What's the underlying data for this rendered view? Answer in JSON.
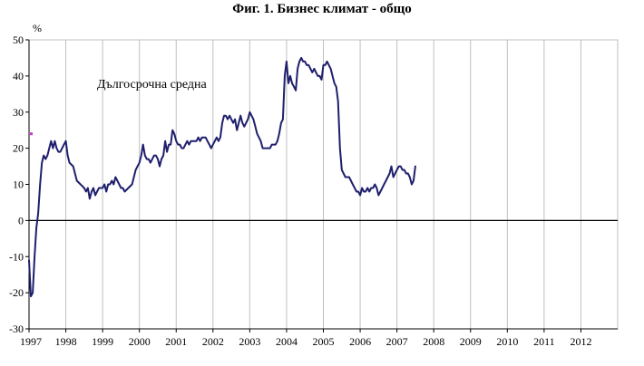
{
  "chart_data": {
    "type": "line",
    "title": "Фиг. 1. Бизнес климат - общо",
    "ylabel": "%",
    "xlabel": "",
    "ylim": [
      -30,
      50
    ],
    "yticks": [
      -30,
      -20,
      -10,
      0,
      10,
      20,
      30,
      40,
      50
    ],
    "x_tick_labels": [
      "1997",
      "1998",
      "1999",
      "2000",
      "2001",
      "2002",
      "2003",
      "2004",
      "2005",
      "2006",
      "2007",
      "2008",
      "2009",
      "2010",
      "2011",
      "2012"
    ],
    "grid": "vertical",
    "annotation": "Дългосрочна средна",
    "colors": {
      "series": "#1f1f6e",
      "zero_line": "#000000",
      "marker": "#cc33cc",
      "grid": "#bfbfbf"
    },
    "long_term_average": {
      "x": 1997.0,
      "y": 24
    },
    "series": [
      {
        "points": [
          [
            1997.0,
            -11
          ],
          [
            1997.05,
            -21
          ],
          [
            1997.1,
            -20
          ],
          [
            1997.15,
            -10
          ],
          [
            1997.2,
            -2
          ],
          [
            1997.25,
            2
          ],
          [
            1997.3,
            10
          ],
          [
            1997.35,
            16
          ],
          [
            1997.4,
            18
          ],
          [
            1997.45,
            17
          ],
          [
            1997.5,
            18
          ],
          [
            1997.55,
            20
          ],
          [
            1997.6,
            22
          ],
          [
            1997.65,
            20
          ],
          [
            1997.7,
            22
          ],
          [
            1997.75,
            20
          ],
          [
            1997.8,
            19
          ],
          [
            1997.85,
            19
          ],
          [
            1997.9,
            20
          ],
          [
            1997.95,
            21
          ],
          [
            1998.0,
            22
          ],
          [
            1998.05,
            18
          ],
          [
            1998.1,
            16
          ],
          [
            1998.2,
            15
          ],
          [
            1998.3,
            11
          ],
          [
            1998.4,
            10
          ],
          [
            1998.5,
            9
          ],
          [
            1998.55,
            8
          ],
          [
            1998.6,
            9
          ],
          [
            1998.65,
            6
          ],
          [
            1998.7,
            8
          ],
          [
            1998.75,
            9
          ],
          [
            1998.8,
            7
          ],
          [
            1998.85,
            8
          ],
          [
            1998.9,
            9
          ],
          [
            1999.0,
            9
          ],
          [
            1999.05,
            10
          ],
          [
            1999.1,
            8
          ],
          [
            1999.15,
            10
          ],
          [
            1999.2,
            10
          ],
          [
            1999.25,
            11
          ],
          [
            1999.3,
            10
          ],
          [
            1999.35,
            12
          ],
          [
            1999.4,
            11
          ],
          [
            1999.45,
            10
          ],
          [
            1999.5,
            9
          ],
          [
            1999.55,
            9
          ],
          [
            1999.6,
            8
          ],
          [
            1999.7,
            9
          ],
          [
            1999.8,
            10
          ],
          [
            1999.9,
            14
          ],
          [
            2000.0,
            16
          ],
          [
            2000.05,
            18
          ],
          [
            2000.1,
            21
          ],
          [
            2000.15,
            18
          ],
          [
            2000.2,
            17
          ],
          [
            2000.25,
            17
          ],
          [
            2000.3,
            16
          ],
          [
            2000.35,
            17
          ],
          [
            2000.4,
            18
          ],
          [
            2000.45,
            18
          ],
          [
            2000.5,
            17
          ],
          [
            2000.55,
            15
          ],
          [
            2000.6,
            17
          ],
          [
            2000.65,
            18
          ],
          [
            2000.7,
            22
          ],
          [
            2000.75,
            19
          ],
          [
            2000.8,
            21
          ],
          [
            2000.85,
            21
          ],
          [
            2000.9,
            25
          ],
          [
            2000.95,
            24
          ],
          [
            2001.0,
            22
          ],
          [
            2001.05,
            21
          ],
          [
            2001.1,
            21
          ],
          [
            2001.15,
            20
          ],
          [
            2001.2,
            20
          ],
          [
            2001.25,
            21
          ],
          [
            2001.3,
            22
          ],
          [
            2001.35,
            21
          ],
          [
            2001.4,
            22
          ],
          [
            2001.45,
            22
          ],
          [
            2001.5,
            22
          ],
          [
            2001.55,
            22
          ],
          [
            2001.6,
            23
          ],
          [
            2001.65,
            22
          ],
          [
            2001.7,
            23
          ],
          [
            2001.75,
            23
          ],
          [
            2001.8,
            23
          ],
          [
            2001.85,
            22
          ],
          [
            2001.9,
            21
          ],
          [
            2001.95,
            20
          ],
          [
            2002.0,
            21
          ],
          [
            2002.05,
            22
          ],
          [
            2002.1,
            23
          ],
          [
            2002.15,
            22
          ],
          [
            2002.2,
            23
          ],
          [
            2002.25,
            27
          ],
          [
            2002.3,
            29
          ],
          [
            2002.35,
            29
          ],
          [
            2002.4,
            28
          ],
          [
            2002.45,
            29
          ],
          [
            2002.5,
            28
          ],
          [
            2002.55,
            27
          ],
          [
            2002.6,
            28
          ],
          [
            2002.65,
            25
          ],
          [
            2002.7,
            27
          ],
          [
            2002.75,
            29
          ],
          [
            2002.8,
            27
          ],
          [
            2002.85,
            26
          ],
          [
            2002.9,
            27
          ],
          [
            2002.95,
            28
          ],
          [
            2003.0,
            30
          ],
          [
            2003.05,
            29
          ],
          [
            2003.1,
            28
          ],
          [
            2003.15,
            26
          ],
          [
            2003.2,
            24
          ],
          [
            2003.25,
            23
          ],
          [
            2003.3,
            22
          ],
          [
            2003.35,
            20
          ],
          [
            2003.4,
            20
          ],
          [
            2003.45,
            20
          ],
          [
            2003.5,
            20
          ],
          [
            2003.55,
            20
          ],
          [
            2003.6,
            21
          ],
          [
            2003.65,
            21
          ],
          [
            2003.7,
            21
          ],
          [
            2003.75,
            22
          ],
          [
            2003.8,
            24
          ],
          [
            2003.85,
            27
          ],
          [
            2003.9,
            28
          ],
          [
            2003.95,
            40
          ],
          [
            2004.0,
            44
          ],
          [
            2004.05,
            38
          ],
          [
            2004.1,
            40
          ],
          [
            2004.15,
            38
          ],
          [
            2004.2,
            37
          ],
          [
            2004.25,
            36
          ],
          [
            2004.3,
            42
          ],
          [
            2004.35,
            44
          ],
          [
            2004.4,
            45
          ],
          [
            2004.45,
            44
          ],
          [
            2004.5,
            44
          ],
          [
            2004.55,
            43
          ],
          [
            2004.6,
            43
          ],
          [
            2004.65,
            42
          ],
          [
            2004.7,
            41
          ],
          [
            2004.75,
            42
          ],
          [
            2004.8,
            41
          ],
          [
            2004.85,
            40
          ],
          [
            2004.9,
            40
          ],
          [
            2004.95,
            39
          ],
          [
            2005.0,
            43
          ],
          [
            2005.05,
            43
          ],
          [
            2005.1,
            44
          ],
          [
            2005.15,
            43
          ],
          [
            2005.2,
            42
          ],
          [
            2005.25,
            40
          ],
          [
            2005.3,
            38
          ],
          [
            2005.35,
            37
          ],
          [
            2005.4,
            33
          ],
          [
            2005.45,
            20
          ],
          [
            2005.5,
            14
          ],
          [
            2005.55,
            13
          ],
          [
            2005.6,
            12
          ],
          [
            2005.65,
            12
          ],
          [
            2005.7,
            12
          ],
          [
            2005.75,
            11
          ],
          [
            2005.8,
            10
          ],
          [
            2005.85,
            9
          ],
          [
            2005.9,
            8
          ],
          [
            2005.95,
            8
          ],
          [
            2006.0,
            7
          ],
          [
            2006.05,
            9
          ],
          [
            2006.1,
            8
          ],
          [
            2006.15,
            8
          ],
          [
            2006.2,
            9
          ],
          [
            2006.25,
            8
          ],
          [
            2006.3,
            9
          ],
          [
            2006.35,
            9
          ],
          [
            2006.4,
            10
          ],
          [
            2006.45,
            9
          ],
          [
            2006.5,
            7
          ],
          [
            2006.55,
            8
          ],
          [
            2006.6,
            9
          ],
          [
            2006.65,
            10
          ],
          [
            2006.7,
            11
          ],
          [
            2006.75,
            12
          ],
          [
            2006.8,
            13
          ],
          [
            2006.85,
            15
          ],
          [
            2006.9,
            12
          ],
          [
            2006.95,
            13
          ],
          [
            2007.0,
            14
          ],
          [
            2007.05,
            15
          ],
          [
            2007.1,
            15
          ],
          [
            2007.15,
            14
          ],
          [
            2007.2,
            14
          ],
          [
            2007.25,
            13
          ],
          [
            2007.3,
            13
          ],
          [
            2007.35,
            12
          ],
          [
            2007.4,
            10
          ],
          [
            2007.45,
            11
          ],
          [
            2007.5,
            15
          ]
        ]
      }
    ]
  }
}
